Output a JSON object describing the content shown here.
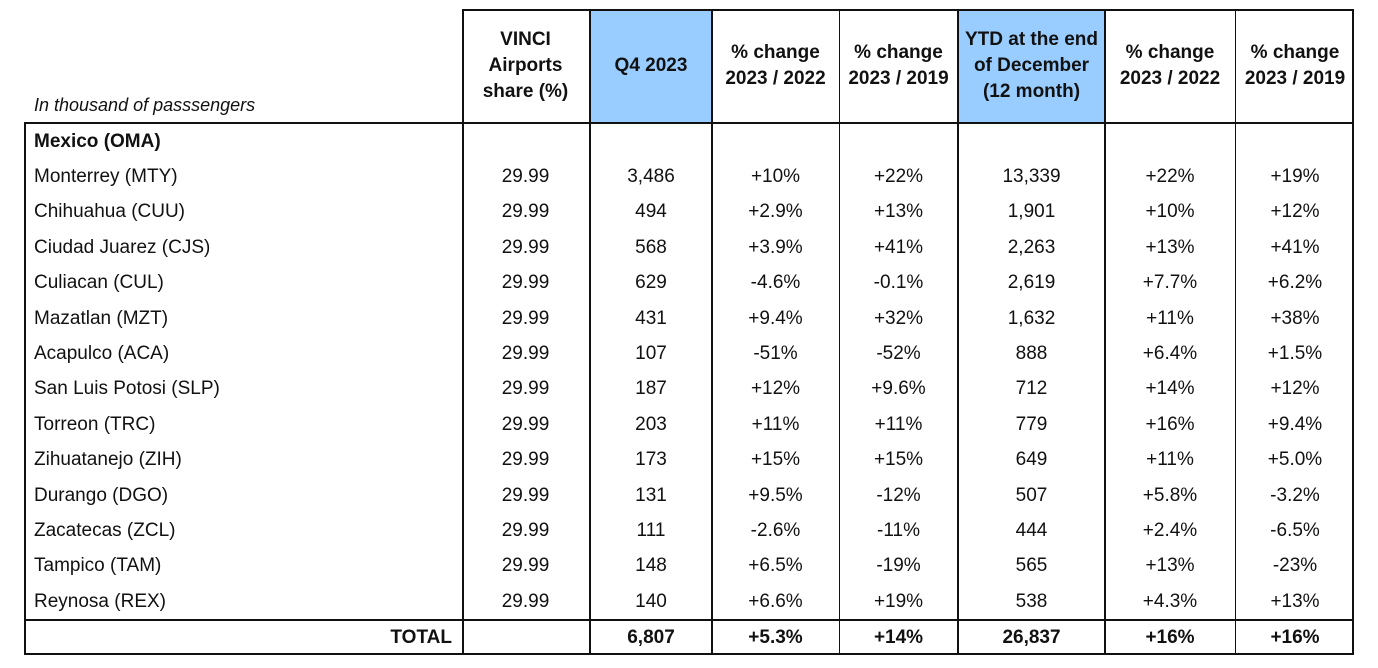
{
  "header": {
    "unit_note": "In thousand of passsengers",
    "columns": [
      "VINCI Airports share (%)",
      "Q4 2023",
      "% change 2023 / 2022",
      "% change 2023 / 2019",
      "YTD at the end of December (12 month)",
      "% change 2023 / 2022",
      "% change 2023 / 2019"
    ]
  },
  "group_label": "Mexico (OMA)",
  "rows": [
    {
      "name": "Monterrey (MTY)",
      "share": "29.99",
      "q4": "3,486",
      "q4_vs_2022": "+10%",
      "q4_vs_2019": "+22%",
      "ytd": "13,339",
      "ytd_vs_2022": "+22%",
      "ytd_vs_2019": "+19%"
    },
    {
      "name": "Chihuahua (CUU)",
      "share": "29.99",
      "q4": "494",
      "q4_vs_2022": "+2.9%",
      "q4_vs_2019": "+13%",
      "ytd": "1,901",
      "ytd_vs_2022": "+10%",
      "ytd_vs_2019": "+12%"
    },
    {
      "name": "Ciudad Juarez (CJS)",
      "share": "29.99",
      "q4": "568",
      "q4_vs_2022": "+3.9%",
      "q4_vs_2019": "+41%",
      "ytd": "2,263",
      "ytd_vs_2022": "+13%",
      "ytd_vs_2019": "+41%"
    },
    {
      "name": "Culiacan (CUL)",
      "share": "29.99",
      "q4": "629",
      "q4_vs_2022": "-4.6%",
      "q4_vs_2019": "-0.1%",
      "ytd": "2,619",
      "ytd_vs_2022": "+7.7%",
      "ytd_vs_2019": "+6.2%"
    },
    {
      "name": "Mazatlan (MZT)",
      "share": "29.99",
      "q4": "431",
      "q4_vs_2022": "+9.4%",
      "q4_vs_2019": "+32%",
      "ytd": "1,632",
      "ytd_vs_2022": "+11%",
      "ytd_vs_2019": "+38%"
    },
    {
      "name": "Acapulco (ACA)",
      "share": "29.99",
      "q4": "107",
      "q4_vs_2022": "-51%",
      "q4_vs_2019": "-52%",
      "ytd": "888",
      "ytd_vs_2022": "+6.4%",
      "ytd_vs_2019": "+1.5%"
    },
    {
      "name": "San Luis Potosi (SLP)",
      "share": "29.99",
      "q4": "187",
      "q4_vs_2022": "+12%",
      "q4_vs_2019": "+9.6%",
      "ytd": "712",
      "ytd_vs_2022": "+14%",
      "ytd_vs_2019": "+12%"
    },
    {
      "name": "Torreon (TRC)",
      "share": "29.99",
      "q4": "203",
      "q4_vs_2022": "+11%",
      "q4_vs_2019": "+11%",
      "ytd": "779",
      "ytd_vs_2022": "+16%",
      "ytd_vs_2019": "+9.4%"
    },
    {
      "name": "Zihuatanejo (ZIH)",
      "share": "29.99",
      "q4": "173",
      "q4_vs_2022": "+15%",
      "q4_vs_2019": "+15%",
      "ytd": "649",
      "ytd_vs_2022": "+11%",
      "ytd_vs_2019": "+5.0%"
    },
    {
      "name": "Durango (DGO)",
      "share": "29.99",
      "q4": "131",
      "q4_vs_2022": "+9.5%",
      "q4_vs_2019": "-12%",
      "ytd": "507",
      "ytd_vs_2022": "+5.8%",
      "ytd_vs_2019": "-3.2%"
    },
    {
      "name": "Zacatecas (ZCL)",
      "share": "29.99",
      "q4": "111",
      "q4_vs_2022": "-2.6%",
      "q4_vs_2019": "-11%",
      "ytd": "444",
      "ytd_vs_2022": "+2.4%",
      "ytd_vs_2019": "-6.5%"
    },
    {
      "name": "Tampico (TAM)",
      "share": "29.99",
      "q4": "148",
      "q4_vs_2022": "+6.5%",
      "q4_vs_2019": "-19%",
      "ytd": "565",
      "ytd_vs_2022": "+13%",
      "ytd_vs_2019": "-23%"
    },
    {
      "name": "Reynosa (REX)",
      "share": "29.99",
      "q4": "140",
      "q4_vs_2022": "+6.6%",
      "q4_vs_2019": "+19%",
      "ytd": "538",
      "ytd_vs_2022": "+4.3%",
      "ytd_vs_2019": "+13%"
    }
  ],
  "total": {
    "name": "TOTAL",
    "q4": "6,807",
    "q4_vs_2022": "+5.3%",
    "q4_vs_2019": "+14%",
    "ytd": "26,837",
    "ytd_vs_2022": "+16%",
    "ytd_vs_2019": "+16%"
  },
  "colors": {
    "highlight": "#99ccff",
    "border": "#111111"
  }
}
